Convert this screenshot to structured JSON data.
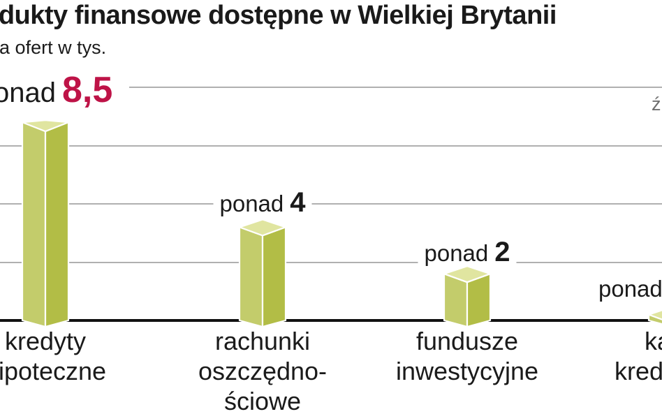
{
  "title": "Produkty finansowe dostępne w Wielkiej Brytanii",
  "subtitle": "Liczba ofert w tys.",
  "source_fragment": "ź",
  "colors": {
    "accent": "#be1347",
    "bar_left_face": "#c3cc6b",
    "bar_right_face": "#b2bd46",
    "bar_top_face": "#e0e5a0",
    "bar_edge": "#ffffff",
    "grid": "#b0b0b0",
    "baseline": "#111111",
    "text": "#1a1a1a",
    "source_text": "#6f6f6f"
  },
  "chart_data": {
    "type": "bar",
    "title": "Produkty finansowe dostępne w Wielkiej Brytanii",
    "subtitle": "Liczba ofert w tys.",
    "ylabel": "liczba ofert w tys.",
    "ylim": [
      0,
      10.5
    ],
    "gridline_values": [
      2.5,
      5,
      7.5,
      10
    ],
    "grid": "horizontal, unlabeled",
    "legend": "none",
    "categories": [
      "kredyty hipoteczne",
      "rachunki oszczędnościowe",
      "fundusze inwestycyjne",
      "karty kredytowe"
    ],
    "category_display_lines": [
      [
        "kredyty",
        "hipoteczne"
      ],
      [
        "rachunki",
        "oszczędno-",
        "ściowe"
      ],
      [
        "fundusze",
        "inwestycyjne"
      ],
      [
        "karty",
        "kredytowe"
      ]
    ],
    "values": [
      8.5,
      4,
      2,
      0.25
    ],
    "value_labels": [
      {
        "prefix": "ponad",
        "number": "8,5",
        "emphasis": true
      },
      {
        "prefix": "ponad",
        "number": "4",
        "emphasis": false
      },
      {
        "prefix": "ponad",
        "number": "2",
        "emphasis": false
      },
      {
        "prefix": "ponad",
        "number": "",
        "emphasis": false
      }
    ]
  }
}
